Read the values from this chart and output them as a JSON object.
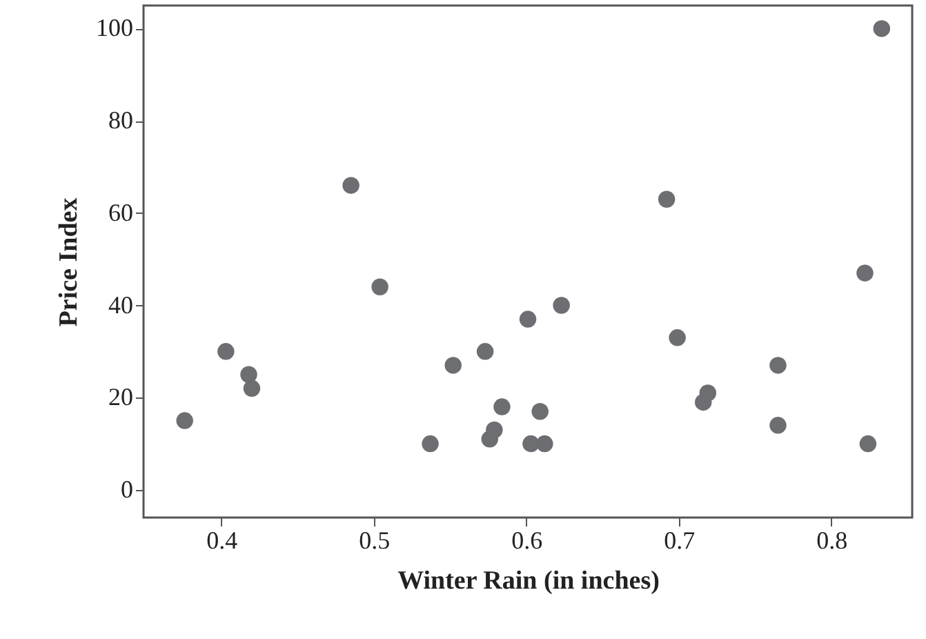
{
  "chart_data": {
    "type": "scatter",
    "xlabel": "Winter Rain (in inches)",
    "ylabel": "Price Index",
    "x": [
      0.376,
      0.403,
      0.418,
      0.42,
      0.485,
      0.504,
      0.537,
      0.552,
      0.573,
      0.576,
      0.579,
      0.584,
      0.601,
      0.603,
      0.609,
      0.612,
      0.623,
      0.692,
      0.699,
      0.716,
      0.719,
      0.765,
      0.765,
      0.822,
      0.824,
      0.833
    ],
    "values": [
      15,
      30,
      25,
      22,
      66,
      44,
      10,
      27,
      30,
      11,
      13,
      18,
      37,
      10,
      17,
      10,
      40,
      63,
      33,
      19,
      21,
      27,
      14,
      47,
      10,
      100
    ],
    "color": "#6d6e71",
    "marker": "circle",
    "grid": false,
    "xlim": [
      0.349,
      0.853
    ],
    "xticks": [
      0.4,
      0.5,
      0.6,
      0.7,
      0.8
    ],
    "ylim": [
      -6,
      105
    ],
    "yticks": [
      0,
      20,
      40,
      60,
      80,
      100
    ]
  }
}
